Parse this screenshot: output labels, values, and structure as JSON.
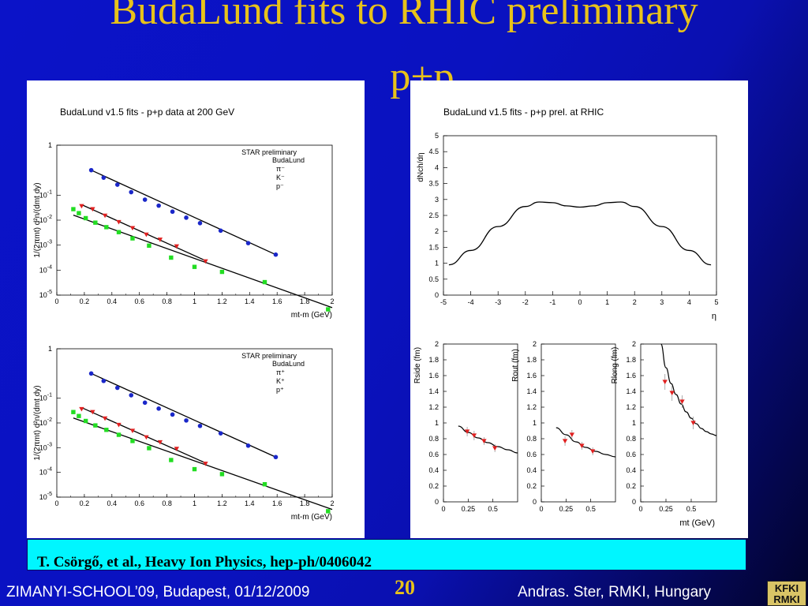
{
  "slide": {
    "title": "BudaLund fits to RHIC preliminary",
    "subtitle": "p+p",
    "citation": "T. Csörgő, et al.,  Heavy Ion Physics,  hep-ph/0406042",
    "footer_left": "ZIMANYI-SCHOOL’09, Budapest, 01/12/2009",
    "page_number": "20",
    "footer_right": "Andras. Ster,  RMKI, Hungary",
    "logo_text": "KFKI RMKI",
    "colors": {
      "background": "#0b13c8",
      "title": "#e8c21a",
      "citation_bg": "#00f6ff"
    }
  },
  "chart_data": [
    {
      "type": "scatter",
      "title": "BudaLund v1.5 fits - p+p data at 200 GeV",
      "xlabel": "mt-m (GeV)",
      "ylabel": "1/(2πmt) d²n/(dmt dy)",
      "log_y": true,
      "xlim": [
        0,
        2
      ],
      "ylim_exponent": [
        -5,
        1
      ],
      "xticks": [
        "0",
        "0.2",
        "0.4",
        "0.6",
        "0.8",
        "1",
        "1.2",
        "1.4",
        "1.6",
        "1.8",
        "2"
      ],
      "ytick_exponents": [
        1,
        -1,
        -2,
        -3,
        -4,
        -5
      ],
      "legend": [
        "STAR preliminary",
        "BudaLund",
        "π⁻",
        "K⁻",
        "p⁻"
      ],
      "series": [
        {
          "color": "#1a27c9",
          "marker": "circle",
          "x": [
            0.25,
            0.34,
            0.44,
            0.54,
            0.64,
            0.74,
            0.84,
            0.94,
            1.04,
            1.19,
            1.39,
            1.59
          ],
          "log10y": [
            0.0,
            -0.3,
            -0.58,
            -0.88,
            -1.18,
            -1.42,
            -1.66,
            -1.9,
            -2.12,
            -2.42,
            -2.92,
            -3.38
          ]
        },
        {
          "color": "#e02020",
          "marker": "triangle",
          "x": [
            0.18,
            0.26,
            0.35,
            0.45,
            0.55,
            0.65,
            0.75,
            0.87,
            1.08
          ],
          "log10y": [
            -1.44,
            -1.56,
            -1.82,
            -2.08,
            -2.32,
            -2.58,
            -2.78,
            -3.05,
            -3.65
          ]
        },
        {
          "color": "#22dd22",
          "marker": "square",
          "x": [
            0.12,
            0.16,
            0.21,
            0.28,
            0.36,
            0.45,
            0.55,
            0.67,
            0.83,
            1.0,
            1.2,
            1.51,
            1.97
          ],
          "log10y": [
            -1.56,
            -1.72,
            -1.92,
            -2.1,
            -2.28,
            -2.48,
            -2.73,
            -3.02,
            -3.5,
            -3.87,
            -4.07,
            -4.48,
            -5.57
          ]
        }
      ],
      "fits": [
        {
          "color": "#000000",
          "x": [
            0.25,
            1.59
          ],
          "log10y": [
            0.0,
            -3.38
          ]
        },
        {
          "color": "#000000",
          "x": [
            0.18,
            1.08
          ],
          "log10y": [
            -1.38,
            -3.62
          ]
        },
        {
          "color": "#000000",
          "x": [
            0.12,
            2.0
          ],
          "log10y": [
            -1.8,
            -5.5
          ]
        }
      ]
    },
    {
      "type": "scatter",
      "title": "",
      "xlabel": "mt-m (GeV)",
      "ylabel": "1/(2πmt) d²n/(dmt dy)",
      "log_y": true,
      "xlim": [
        0,
        2
      ],
      "ylim_exponent": [
        -5,
        1
      ],
      "xticks": [
        "0",
        "0.2",
        "0.4",
        "0.6",
        "0.8",
        "1",
        "1.2",
        "1.4",
        "1.6",
        "1.8",
        "2"
      ],
      "ytick_exponents": [
        1,
        -1,
        -2,
        -3,
        -4,
        -5
      ],
      "legend": [
        "STAR preliminary",
        "BudaLund",
        "π⁺",
        "K⁺",
        "p⁺"
      ],
      "series": [
        {
          "color": "#1a27c9",
          "marker": "circle",
          "x": [
            0.25,
            0.34,
            0.44,
            0.54,
            0.64,
            0.74,
            0.84,
            0.94,
            1.04,
            1.19,
            1.39,
            1.59
          ],
          "log10y": [
            0.0,
            -0.3,
            -0.58,
            -0.88,
            -1.18,
            -1.42,
            -1.66,
            -1.9,
            -2.12,
            -2.42,
            -2.92,
            -3.38
          ]
        },
        {
          "color": "#e02020",
          "marker": "triangle",
          "x": [
            0.18,
            0.26,
            0.35,
            0.45,
            0.55,
            0.65,
            0.75,
            0.87,
            1.08
          ],
          "log10y": [
            -1.44,
            -1.56,
            -1.82,
            -2.08,
            -2.32,
            -2.58,
            -2.78,
            -3.05,
            -3.65
          ]
        },
        {
          "color": "#22dd22",
          "marker": "square",
          "x": [
            0.12,
            0.16,
            0.21,
            0.28,
            0.36,
            0.45,
            0.55,
            0.67,
            0.83,
            1.0,
            1.2,
            1.51,
            1.97
          ],
          "log10y": [
            -1.56,
            -1.72,
            -1.92,
            -2.1,
            -2.28,
            -2.48,
            -2.73,
            -3.02,
            -3.5,
            -3.87,
            -4.07,
            -4.48,
            -5.57
          ]
        }
      ],
      "fits": [
        {
          "color": "#000000",
          "x": [
            0.25,
            1.59
          ],
          "log10y": [
            0.0,
            -3.38
          ]
        },
        {
          "color": "#000000",
          "x": [
            0.18,
            1.08
          ],
          "log10y": [
            -1.38,
            -3.62
          ]
        },
        {
          "color": "#000000",
          "x": [
            0.12,
            2.0
          ],
          "log10y": [
            -1.8,
            -5.5
          ]
        }
      ]
    },
    {
      "type": "line",
      "title": "BudaLund v1.5 fits - p+p prel. at RHIC",
      "xlabel": "η",
      "ylabel": "dNch/dη",
      "xlim": [
        -5,
        5
      ],
      "ylim": [
        0,
        5
      ],
      "xticks": [
        "-5",
        "-4",
        "-3",
        "-2",
        "-1",
        "0",
        "1",
        "2",
        "3",
        "4",
        "5"
      ],
      "yticks": [
        "0",
        "0.5",
        "1",
        "1.5",
        "2",
        "2.5",
        "3",
        "3.5",
        "4",
        "4.5",
        "5"
      ],
      "x": [
        -4.8,
        -4.0,
        -3.0,
        -2.0,
        -1.5,
        -1.0,
        -0.5,
        0.0,
        0.5,
        1.0,
        1.5,
        2.0,
        3.0,
        4.0,
        4.8
      ],
      "y": [
        0.95,
        1.4,
        2.15,
        2.78,
        2.92,
        2.9,
        2.8,
        2.76,
        2.8,
        2.9,
        2.92,
        2.78,
        2.15,
        1.4,
        0.95
      ]
    },
    {
      "type": "scatter",
      "title": "",
      "xlabel": "",
      "ylabel": "Rside (fm)",
      "xlim": [
        0,
        0.75
      ],
      "ylim": [
        0,
        2
      ],
      "xticks": [
        "0",
        "0.25",
        "0.5"
      ],
      "yticks": [
        "0",
        "0.2",
        "0.4",
        "0.6",
        "0.8",
        "1",
        "1.2",
        "1.4",
        "1.6",
        "1.8",
        "2"
      ],
      "points": {
        "x": [
          0.24,
          0.31,
          0.41,
          0.52
        ],
        "y": [
          0.89,
          0.84,
          0.77,
          0.68
        ],
        "err": [
          0.06,
          0.06,
          0.05,
          0.05
        ]
      },
      "fit": {
        "x": [
          0.15,
          0.25,
          0.35,
          0.45,
          0.55,
          0.65,
          0.75
        ],
        "y": [
          0.96,
          0.88,
          0.81,
          0.75,
          0.7,
          0.66,
          0.62
        ]
      }
    },
    {
      "type": "scatter",
      "title": "",
      "xlabel": "",
      "ylabel": "Rout (fm)",
      "xlim": [
        0,
        0.75
      ],
      "ylim": [
        0,
        2
      ],
      "xticks": [
        "0",
        "0.25",
        "0.5"
      ],
      "yticks": [
        "0",
        "0.2",
        "0.4",
        "0.6",
        "0.8",
        "1",
        "1.2",
        "1.4",
        "1.6",
        "1.8",
        "2"
      ],
      "points": {
        "x": [
          0.24,
          0.31,
          0.41,
          0.52
        ],
        "y": [
          0.77,
          0.85,
          0.71,
          0.64
        ],
        "err": [
          0.06,
          0.06,
          0.05,
          0.05
        ]
      },
      "fit": {
        "x": [
          0.15,
          0.25,
          0.35,
          0.45,
          0.55,
          0.65,
          0.75
        ],
        "y": [
          0.94,
          0.85,
          0.76,
          0.69,
          0.64,
          0.6,
          0.57
        ]
      }
    },
    {
      "type": "scatter",
      "title": "",
      "xlabel": "mt (GeV)",
      "ylabel": "Rlong (fm)",
      "xlim": [
        0,
        0.75
      ],
      "ylim": [
        0,
        2
      ],
      "xticks": [
        "0",
        "0.25",
        "0.5"
      ],
      "yticks": [
        "0",
        "0.2",
        "0.4",
        "0.6",
        "0.8",
        "1",
        "1.2",
        "1.4",
        "1.6",
        "1.8",
        "2"
      ],
      "points": {
        "x": [
          0.24,
          0.31,
          0.41,
          0.52
        ],
        "y": [
          1.52,
          1.38,
          1.27,
          1.0
        ],
        "err": [
          0.1,
          0.1,
          0.08,
          0.08
        ]
      },
      "fit": {
        "x": [
          0.2,
          0.25,
          0.3,
          0.35,
          0.4,
          0.45,
          0.5,
          0.55,
          0.6,
          0.65,
          0.7,
          0.75
        ],
        "y": [
          2.0,
          1.7,
          1.5,
          1.36,
          1.24,
          1.14,
          1.06,
          0.99,
          0.93,
          0.89,
          0.86,
          0.84
        ]
      }
    }
  ]
}
